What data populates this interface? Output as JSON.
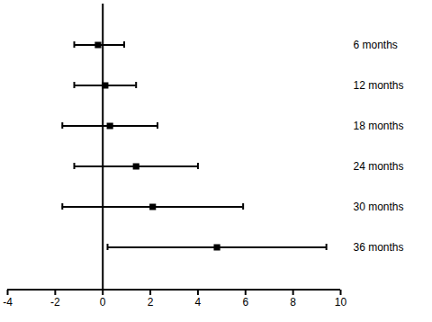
{
  "chart_data": {
    "type": "forest",
    "categories": [
      "6 months",
      "12 months",
      "18 months",
      "24 months",
      "30 months",
      "36 months"
    ],
    "values": [
      -0.2,
      0.1,
      0.3,
      1.4,
      2.1,
      4.8
    ],
    "lower": [
      -1.2,
      -1.2,
      -1.7,
      -1.2,
      -1.7,
      0.2
    ],
    "upper": [
      0.9,
      1.4,
      2.3,
      4.0,
      5.9,
      9.4
    ],
    "reference": 0,
    "color": "#000000",
    "marker": "square",
    "xlim": [
      -4,
      10
    ],
    "xticks": [
      -4,
      -2,
      0,
      2,
      4,
      6,
      8,
      10
    ]
  }
}
